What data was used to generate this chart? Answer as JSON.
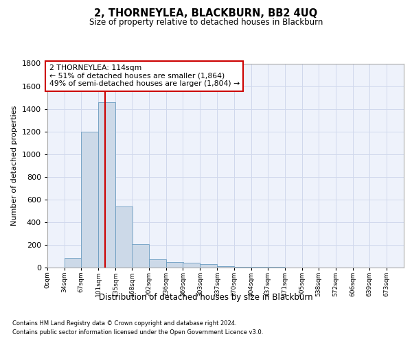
{
  "title": "2, THORNEYLEA, BLACKBURN, BB2 4UQ",
  "subtitle": "Size of property relative to detached houses in Blackburn",
  "xlabel": "Distribution of detached houses by size in Blackburn",
  "ylabel": "Number of detached properties",
  "bar_color": "#ccd9e8",
  "bar_edge_color": "#6a9cc0",
  "annotation_box_text": "2 THORNEYLEA: 114sqm\n← 51% of detached houses are smaller (1,864)\n49% of semi-detached houses are larger (1,804) →",
  "annotation_box_color": "#ffffff",
  "annotation_box_edge_color": "#cc0000",
  "red_line_x": 114,
  "red_line_color": "#cc0000",
  "footer_line1": "Contains HM Land Registry data © Crown copyright and database right 2024.",
  "footer_line2": "Contains public sector information licensed under the Open Government Licence v3.0.",
  "bins": [
    0,
    34,
    67,
    101,
    135,
    168,
    202,
    236,
    269,
    303,
    337,
    370,
    404,
    437,
    471,
    505,
    538,
    572,
    606,
    639,
    673
  ],
  "counts": [
    0,
    85,
    1200,
    1460,
    540,
    205,
    70,
    50,
    40,
    30,
    10,
    8,
    8,
    5,
    3,
    2,
    2,
    1,
    1,
    0
  ],
  "ylim": [
    0,
    1800
  ],
  "yticks": [
    0,
    200,
    400,
    600,
    800,
    1000,
    1200,
    1400,
    1600,
    1800
  ],
  "xlim_max": 707,
  "grid_color": "#d0d8ec",
  "background_color": "#eef2fb",
  "tick_labels": [
    "0sqm",
    "34sqm",
    "67sqm",
    "101sqm",
    "135sqm",
    "168sqm",
    "202sqm",
    "236sqm",
    "269sqm",
    "303sqm",
    "337sqm",
    "370sqm",
    "404sqm",
    "437sqm",
    "471sqm",
    "505sqm",
    "538sqm",
    "572sqm",
    "606sqm",
    "639sqm",
    "673sqm"
  ]
}
